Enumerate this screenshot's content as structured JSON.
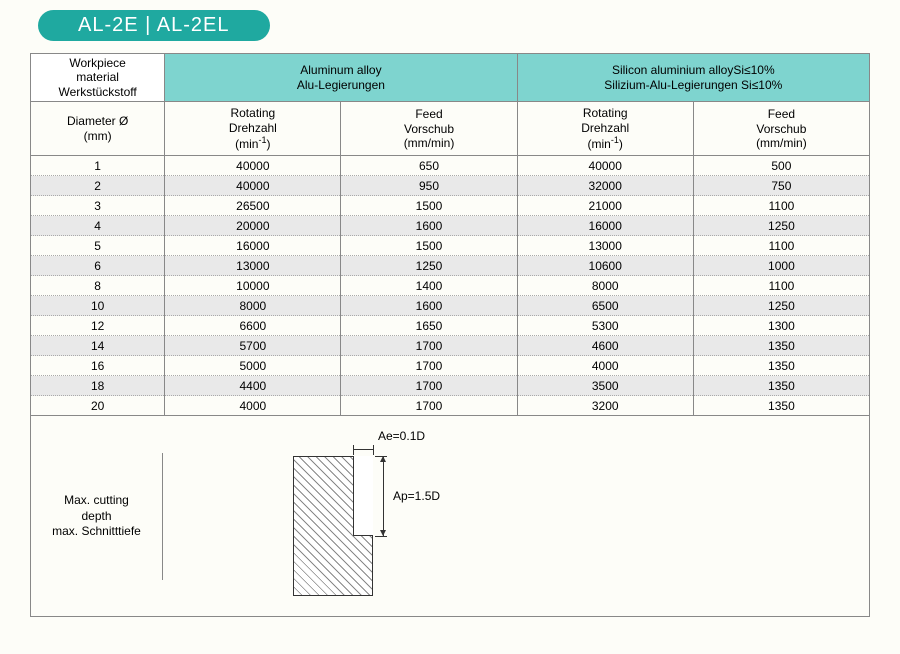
{
  "title": "AL-2E | AL-2EL",
  "header": {
    "material": {
      "l1": "Workpiece",
      "l2": "material",
      "l3": "Werkstückstoff"
    },
    "group1": {
      "l1": "Aluminum alloy",
      "l2": "Alu-Legierungen"
    },
    "group2": {
      "l1": "Silicon aluminium alloySi≤10%",
      "l2": "Silizium-Alu-Legierungen Si≤10%"
    },
    "diameter": {
      "l1": "Diameter Ø",
      "l2": "(mm)"
    },
    "rotating": {
      "l1": "Rotating",
      "l2": "Drehzahl",
      "l3_pre": "(min",
      "l3_sup": "-1",
      "l3_post": ")"
    },
    "feed": {
      "l1": "Feed",
      "l2": "Vorschub",
      "l3": "(mm/min)"
    }
  },
  "rows": [
    {
      "d": "1",
      "r1": "40000",
      "f1": "650",
      "r2": "40000",
      "f2": "500"
    },
    {
      "d": "2",
      "r1": "40000",
      "f1": "950",
      "r2": "32000",
      "f2": "750"
    },
    {
      "d": "3",
      "r1": "26500",
      "f1": "1500",
      "r2": "21000",
      "f2": "1100"
    },
    {
      "d": "4",
      "r1": "20000",
      "f1": "1600",
      "r2": "16000",
      "f2": "1250"
    },
    {
      "d": "5",
      "r1": "16000",
      "f1": "1500",
      "r2": "13000",
      "f2": "1100"
    },
    {
      "d": "6",
      "r1": "13000",
      "f1": "1250",
      "r2": "10600",
      "f2": "1000"
    },
    {
      "d": "8",
      "r1": "10000",
      "f1": "1400",
      "r2": "8000",
      "f2": "1100"
    },
    {
      "d": "10",
      "r1": "8000",
      "f1": "1600",
      "r2": "6500",
      "f2": "1250"
    },
    {
      "d": "12",
      "r1": "6600",
      "f1": "1650",
      "r2": "5300",
      "f2": "1300"
    },
    {
      "d": "14",
      "r1": "5700",
      "f1": "1700",
      "r2": "4600",
      "f2": "1350"
    },
    {
      "d": "16",
      "r1": "5000",
      "f1": "1700",
      "r2": "4000",
      "f2": "1350"
    },
    {
      "d": "18",
      "r1": "4400",
      "f1": "1700",
      "r2": "3500",
      "f2": "1350"
    },
    {
      "d": "20",
      "r1": "4000",
      "f1": "1700",
      "r2": "3200",
      "f2": "1350"
    }
  ],
  "footer": {
    "label": {
      "l1": "Max. cutting",
      "l2": "depth",
      "l3": "max. Schnitttiefe"
    },
    "ae": "Ae=0.1D",
    "ap": "Ap=1.5D"
  },
  "style": {
    "accent": "#1fa9a0",
    "header_bg": "#7ed4cf",
    "shaded_row": "#e9e9e9",
    "col_widths": [
      "16%",
      "21%",
      "21%",
      "21%",
      "21%"
    ]
  }
}
